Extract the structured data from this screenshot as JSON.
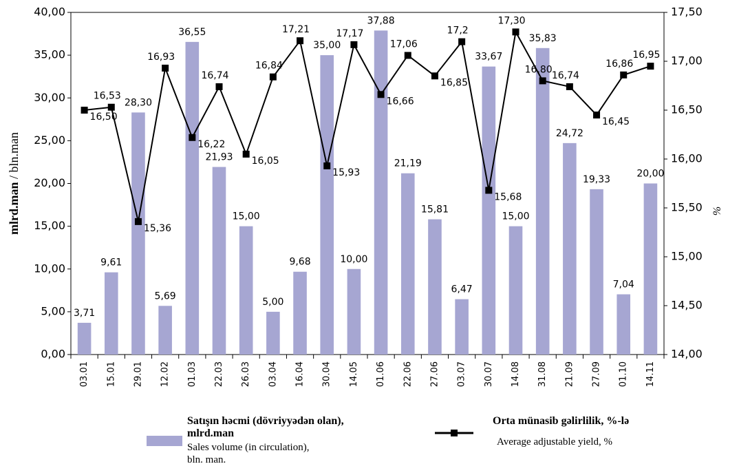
{
  "chart_data": {
    "type": "bar+line",
    "y_axis_label": {
      "main": "mlrd.man",
      "sep": " / bln.man"
    },
    "y2_axis_label": "%",
    "categories": [
      "03.01",
      "15.01",
      "29.01",
      "12.02",
      "01.03",
      "22.03",
      "26.03",
      "03.04",
      "16.04",
      "30.04",
      "14.05",
      "01.06",
      "22.06",
      "27.06",
      "03.07",
      "30.07",
      "14.08",
      "31.08",
      "21.09",
      "27.09",
      "01.10",
      "14.11"
    ],
    "series": [
      {
        "name": "Satışın həcmi (dövriyyədən olan), mlrd.man",
        "note": "Sales volume (in circulation), bln. man.",
        "type": "bar",
        "color": "#a6a6d2",
        "values": [
          3.71,
          9.61,
          28.3,
          5.69,
          36.55,
          21.93,
          15.0,
          5.0,
          9.68,
          35.0,
          10.0,
          37.88,
          21.19,
          15.81,
          6.47,
          33.67,
          15.0,
          35.83,
          24.72,
          19.33,
          7.04,
          20.0
        ],
        "value_labels": [
          "3,71",
          "9,61",
          "28,30",
          "5,69",
          "36,55",
          "21,93",
          "15,00",
          "5,00",
          "9,68",
          "35,00",
          "10,00",
          "37,88",
          "21,19",
          "15,81",
          "6,47",
          "33,67",
          "15,00",
          "35,83",
          "24,72",
          "19,33",
          "7,04",
          "20,00"
        ]
      },
      {
        "name": "Orta münasib gəlirlilik, %-lə",
        "note": "Average adjustable yield, %",
        "type": "line",
        "axis": "y2",
        "color": "#000000",
        "values": [
          16.5,
          16.53,
          15.36,
          16.93,
          16.22,
          16.74,
          16.05,
          16.84,
          17.21,
          15.93,
          17.17,
          16.66,
          17.06,
          16.85,
          17.2,
          15.68,
          17.3,
          16.8,
          16.74,
          16.45,
          16.86,
          16.95
        ],
        "value_labels": [
          "16,50",
          "16,53",
          "15,36",
          "16,93",
          "16,22",
          "16,74",
          "16,05",
          "16,84",
          "17,21",
          "15,93",
          "17,17",
          "16,66",
          "17,06",
          "16,85",
          "17,2",
          "15,68",
          "17,30",
          "16,80",
          "16,74",
          "16,45",
          "16,86",
          "16,95"
        ]
      }
    ],
    "ylim": [
      0,
      40
    ],
    "yticks": [
      {
        "value": 0,
        "label": "0,00"
      },
      {
        "value": 5,
        "label": "5,00"
      },
      {
        "value": 10,
        "label": "10,00"
      },
      {
        "value": 15,
        "label": "15,00"
      },
      {
        "value": 20,
        "label": "20,00"
      },
      {
        "value": 25,
        "label": "25,00"
      },
      {
        "value": 30,
        "label": "30,00"
      },
      {
        "value": 35,
        "label": "35,00"
      },
      {
        "value": 40,
        "label": "40,00"
      }
    ],
    "y2lim": [
      14,
      17.5
    ],
    "y2ticks": [
      {
        "value": 14,
        "label": "14,00"
      },
      {
        "value": 14.5,
        "label": "14,50"
      },
      {
        "value": 15,
        "label": "15,00"
      },
      {
        "value": 15.5,
        "label": "15,50"
      },
      {
        "value": 16,
        "label": "16,00"
      },
      {
        "value": 16.5,
        "label": "16,50"
      },
      {
        "value": 17,
        "label": "17,00"
      },
      {
        "value": 17.5,
        "label": "17,50"
      }
    ],
    "legend": "bottom"
  }
}
